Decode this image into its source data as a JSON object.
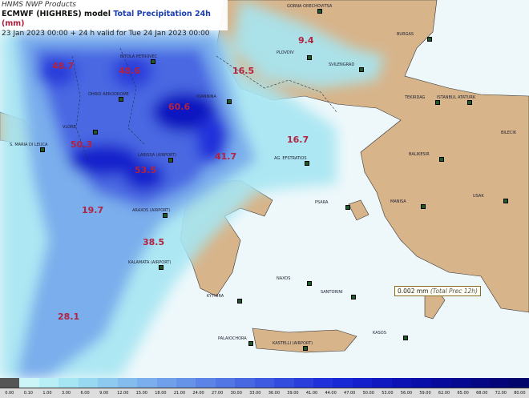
{
  "header": {
    "provider": "HNMS NWP Products",
    "model": "ECMWF (HIGHRES) model",
    "variable": "Total Precipitation 24h",
    "unit": "(mm)",
    "validity": "23 Jan 2023 00:00 + 24 h valid for Tue 24 Jan 2023 00:00"
  },
  "max_values": [
    "48.7",
    "48.6",
    "60.6",
    "50.3",
    "53.5",
    "41.7",
    "16.5",
    "9.4",
    "16.7",
    "19.7",
    "38.5",
    "28.1"
  ],
  "cities": [
    "GORNA ORECHOVITSA",
    "PLOVDIV",
    "BURGAS",
    "SVILENGRAD",
    "TEKIRDAG",
    "ISTANBUL ATATURK",
    "BALIKESIR",
    "MANISA",
    "USAK",
    "OHRID AERODROME",
    "BITOLA PETROVEC",
    "IOANNINA",
    "LARISSA (AIRPORT)",
    "S. MARIA DI LEUCA",
    "AG. EFSTRATIOS",
    "PSARA",
    "ARAXOS (AIRPORT)",
    "KALAMATA (AIRPORT)",
    "KYTHIRA",
    "PALAIOCHORA",
    "SANTORINI",
    "NAXOS",
    "KASOS",
    "BILECIK",
    "KASTELLI (AIRPORT)",
    "VLORE"
  ],
  "probe": {
    "value": "0.002 mm",
    "note": "(Total Prec 12h)"
  },
  "colorbar": {
    "labels": [
      "0.00",
      "0.10",
      "1.00",
      "3.00",
      "6.00",
      "9.00",
      "12.00",
      "15.00",
      "18.00",
      "21.00",
      "24.00",
      "27.00",
      "30.00",
      "33.00",
      "36.00",
      "39.00",
      "41.00",
      "44.00",
      "47.00",
      "50.00",
      "53.00",
      "56.00",
      "59.00",
      "62.00",
      "65.00",
      "68.00",
      "72.00",
      "80.00"
    ],
    "colors": [
      "#555555",
      "#ccf5f8",
      "#b8eef5",
      "#a6e6f2",
      "#98d8f0",
      "#8ecaf0",
      "#84bcee",
      "#7aaeec",
      "#70a0ea",
      "#6692e8",
      "#5c84e6",
      "#5276e4",
      "#4868e2",
      "#3e5ae0",
      "#344cde",
      "#2a3edc",
      "#2030da",
      "#1828d4",
      "#1420cc",
      "#1018c0",
      "#0c12b4",
      "#0a0ea8",
      "#080a9c",
      "#060890",
      "#050684",
      "#040478",
      "#03036c"
    ]
  },
  "colors": {
    "land": "#d7b48a",
    "sea": "#eef8fb",
    "value_label": "#b3223f"
  }
}
